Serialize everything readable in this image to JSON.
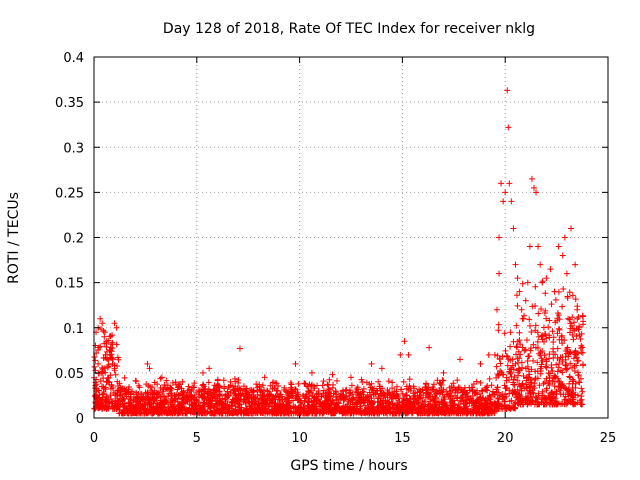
{
  "chart_data": {
    "type": "scatter",
    "title": "Day 128 of 2018, Rate Of TEC Index for receiver nklg",
    "xlabel": "GPS time / hours",
    "ylabel": "ROTI / TECUs",
    "xlim": [
      0,
      25
    ],
    "ylim": [
      0,
      0.4
    ],
    "xticks": [
      0,
      5,
      10,
      15,
      20,
      25
    ],
    "xtick_labels": [
      "0",
      "5",
      "10",
      "15",
      "20",
      "25"
    ],
    "yticks": [
      0,
      0.05,
      0.1,
      0.15,
      0.2,
      0.25,
      0.3,
      0.35,
      0.4
    ],
    "ytick_labels": [
      "0",
      "0.05",
      "0.1",
      "0.15",
      "0.2",
      "0.25",
      "0.3",
      "0.35",
      "0.4"
    ],
    "grid": true,
    "marker": "plus",
    "color": "#ff0000",
    "series": [
      {
        "name": "ROTI",
        "points": [
          [
            0.1,
            0.095
          ],
          [
            0.2,
            0.1
          ],
          [
            0.3,
            0.11
          ],
          [
            0.4,
            0.105
          ],
          [
            0.5,
            0.09
          ],
          [
            0.6,
            0.085
          ],
          [
            0.8,
            0.075
          ],
          [
            1.0,
            0.105
          ],
          [
            1.1,
            0.1
          ],
          [
            0.9,
            0.06
          ],
          [
            0.2,
            0.06
          ],
          [
            0.5,
            0.055
          ],
          [
            2.6,
            0.06
          ],
          [
            2.7,
            0.055
          ],
          [
            3.3,
            0.045
          ],
          [
            4.3,
            0.04
          ],
          [
            5.3,
            0.05
          ],
          [
            5.6,
            0.055
          ],
          [
            7.1,
            0.077
          ],
          [
            8.3,
            0.045
          ],
          [
            9.8,
            0.06
          ],
          [
            10.6,
            0.05
          ],
          [
            11.6,
            0.048
          ],
          [
            12.5,
            0.045
          ],
          [
            13.5,
            0.06
          ],
          [
            14.0,
            0.055
          ],
          [
            14.9,
            0.07
          ],
          [
            15.1,
            0.085
          ],
          [
            15.3,
            0.07
          ],
          [
            16.3,
            0.078
          ],
          [
            17.0,
            0.05
          ],
          [
            17.8,
            0.065
          ],
          [
            18.8,
            0.06
          ],
          [
            19.2,
            0.07
          ],
          [
            19.5,
            0.07
          ],
          [
            19.6,
            0.12
          ],
          [
            19.7,
            0.16
          ],
          [
            19.7,
            0.2
          ],
          [
            19.8,
            0.26
          ],
          [
            19.9,
            0.24
          ],
          [
            20.0,
            0.25
          ],
          [
            20.1,
            0.363
          ],
          [
            20.15,
            0.322
          ],
          [
            20.2,
            0.26
          ],
          [
            20.3,
            0.24
          ],
          [
            20.4,
            0.21
          ],
          [
            20.5,
            0.17
          ],
          [
            20.6,
            0.155
          ],
          [
            20.7,
            0.14
          ],
          [
            20.8,
            0.12
          ],
          [
            20.9,
            0.11
          ],
          [
            21.0,
            0.13
          ],
          [
            21.1,
            0.15
          ],
          [
            21.2,
            0.19
          ],
          [
            21.3,
            0.265
          ],
          [
            21.4,
            0.255
          ],
          [
            21.5,
            0.25
          ],
          [
            21.6,
            0.19
          ],
          [
            21.7,
            0.17
          ],
          [
            21.8,
            0.15
          ],
          [
            22.0,
            0.155
          ],
          [
            22.2,
            0.165
          ],
          [
            22.4,
            0.14
          ],
          [
            22.6,
            0.19
          ],
          [
            22.8,
            0.18
          ],
          [
            22.9,
            0.2
          ],
          [
            23.0,
            0.16
          ],
          [
            23.2,
            0.21
          ],
          [
            23.4,
            0.17
          ],
          [
            23.5,
            0.12
          ],
          [
            23.6,
            0.1
          ],
          [
            23.7,
            0.08
          ]
        ]
      }
    ]
  }
}
